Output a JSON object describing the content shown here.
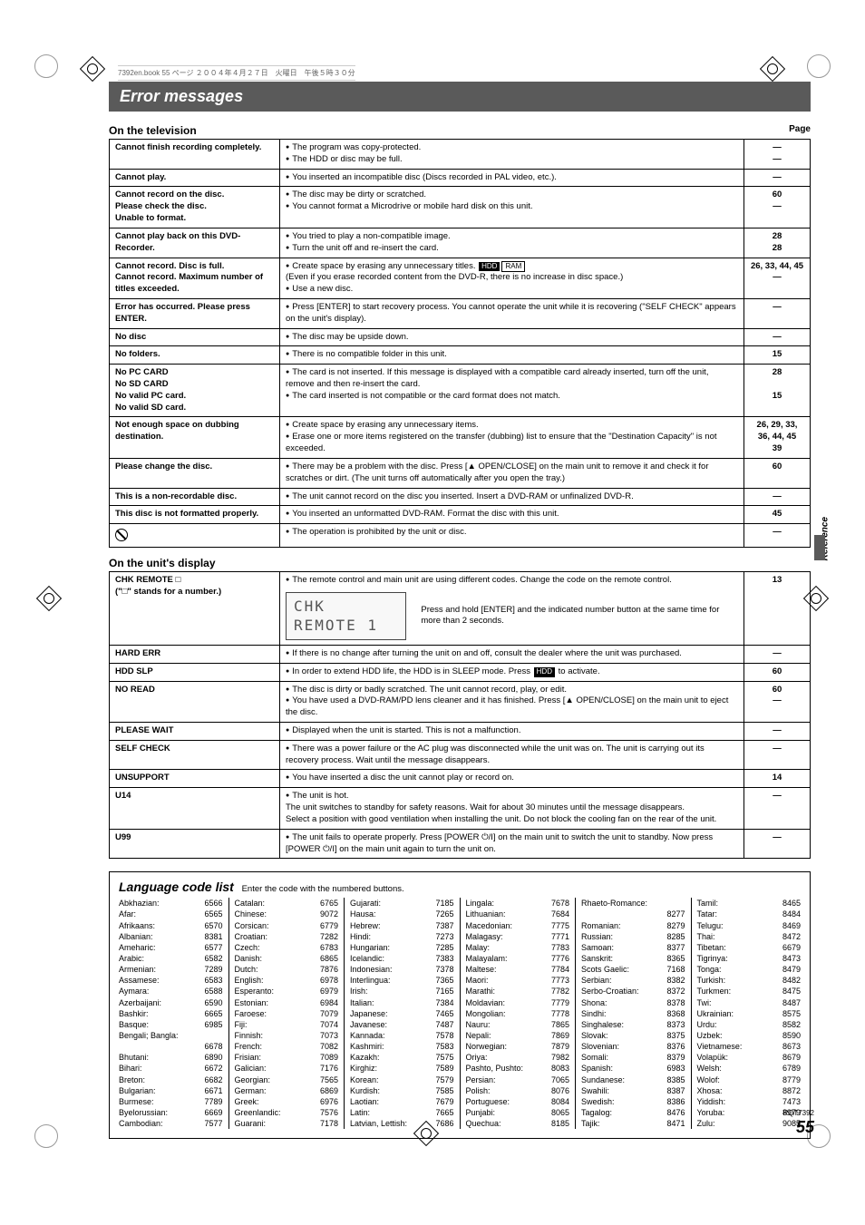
{
  "book_info": "7392en.book  55 ページ  ２００４年４月２７日　火曜日　午後５時３０分",
  "section_title": "Error messages",
  "page_label": "Page",
  "headers": {
    "tv": "On the television",
    "unit": "On the unit's display"
  },
  "tv_table": [
    {
      "c1": "Cannot finish recording completely.",
      "c2": [
        "The program was copy-protected.",
        "The HDD or disc may be full."
      ],
      "c3": "—\n—"
    },
    {
      "c1": "Cannot play.",
      "c2": [
        "You inserted an incompatible disc (Discs recorded in PAL video, etc.)."
      ],
      "c3": "—"
    },
    {
      "c1": "Cannot record on the disc.\nPlease check the disc.\nUnable to format.",
      "c2": [
        "The disc may be dirty or scratched.",
        "You cannot format a Microdrive or mobile hard disk on this unit."
      ],
      "c3": "60\n—"
    },
    {
      "c1": "Cannot play back on this DVD-Recorder.",
      "c2": [
        "You tried to play a non-compatible image.",
        "Turn the unit off and re-insert the card."
      ],
      "c3": "28\n28"
    },
    {
      "c1": "Cannot record. Disc is full.\nCannot record. Maximum number of titles exceeded.",
      "c2": [
        "Create space by erasing any unnecessary titles. [HDD][RAM]\n(Even if you erase recorded content from the DVD-R, there is no increase in disc space.)",
        "Use a new disc."
      ],
      "c3": "26, 33, 44, 45\n—"
    },
    {
      "c1": "Error has occurred. Please press ENTER.",
      "c2": [
        "Press [ENTER] to start recovery process. You cannot operate the unit while it is recovering (\"SELF CHECK\" appears on the unit's display)."
      ],
      "c3": "—"
    },
    {
      "c1": "No disc",
      "c2": [
        "The disc may be upside down."
      ],
      "c3": "—"
    },
    {
      "c1": "No folders.",
      "c2": [
        "There is no compatible folder in this unit."
      ],
      "c3": "15"
    },
    {
      "c1": "No PC CARD\nNo SD CARD\nNo valid PC card.\nNo valid SD card.",
      "c2": [
        "The card is not inserted. If this message is displayed with a compatible card already inserted, turn off the unit, remove and then re-insert the card.",
        "The card inserted is not compatible or the card format does not match."
      ],
      "c3": "28\n\n15"
    },
    {
      "c1": "Not enough space on dubbing destination.",
      "c2": [
        "Create space by erasing any unnecessary items.",
        "Erase one or more items registered on the transfer (dubbing) list to ensure that the \"Destination Capacity\" is not exceeded."
      ],
      "c3": "26, 29, 33, 36, 44, 45\n39"
    },
    {
      "c1": "Please change the disc.",
      "c2": [
        "There may be a problem with the disc. Press [▲ OPEN/CLOSE] on the main unit to remove it and check it for scratches or dirt. (The unit turns off automatically after you open the tray.)"
      ],
      "c3": "60"
    },
    {
      "c1": "This is a non-recordable disc.",
      "c2": [
        "The unit cannot record on the disc you inserted. Insert a DVD-RAM or unfinalized DVD-R."
      ],
      "c3": "—"
    },
    {
      "c1": "This disc is not formatted properly.",
      "c2": [
        "You inserted an unformatted DVD-RAM. Format the disc with this unit."
      ],
      "c3": "45"
    },
    {
      "c1": "[PROHIBIT]",
      "c2": [
        "The operation is prohibited by the unit or disc."
      ],
      "c3": "—"
    }
  ],
  "unit_table": [
    {
      "c1": "CHK REMOTE □\n(\"□\" stands for a number.)",
      "c2": [
        "The remote control and main unit are using different codes. Change the code on the remote control.",
        "[REMOTE_DISPLAY] Press and hold [ENTER] and the indicated number button at the same time for more than 2 seconds."
      ],
      "c3": "13"
    },
    {
      "c1": "HARD ERR",
      "c2": [
        "If there is no change after turning the unit on and off, consult the dealer where the unit was purchased."
      ],
      "c3": "—"
    },
    {
      "c1": "HDD SLP",
      "c2": [
        "In order to extend HDD life, the HDD is in SLEEP mode. Press [HDD] to activate."
      ],
      "c3": "60"
    },
    {
      "c1": "NO READ",
      "c2": [
        "The disc is dirty or badly scratched. The unit cannot record, play, or edit.",
        "You have used a DVD-RAM/PD lens cleaner and it has finished. Press [▲ OPEN/CLOSE] on the main unit to eject the disc."
      ],
      "c3": "60\n—"
    },
    {
      "c1": "PLEASE WAIT",
      "c2": [
        "Displayed when the unit is started. This is not a malfunction."
      ],
      "c3": "—"
    },
    {
      "c1": "SELF CHECK",
      "c2": [
        "There was a power failure or the AC plug was disconnected while the unit was on. The unit is carrying out its recovery process. Wait until the message disappears."
      ],
      "c3": "—"
    },
    {
      "c1": "UNSUPPORT",
      "c2": [
        "You have inserted a disc the unit cannot play or record on."
      ],
      "c3": "14"
    },
    {
      "c1": "U14",
      "c2": [
        "The unit is hot.\nThe unit switches to standby for safety reasons. Wait for about 30 minutes until the message disappears.\nSelect a position with good ventilation when installing the unit. Do not block the cooling fan on the rear of the unit."
      ],
      "c3": "—"
    },
    {
      "c1": "U99",
      "c2": [
        "The unit fails to operate properly. Press [POWER ⏻/I] on the main unit to switch the unit to standby. Now press [POWER ⏻/I] on the main unit again to turn the unit on."
      ],
      "c3": "—"
    }
  ],
  "remote_display_text": "CHK REMOTE 1",
  "lang_title": "Language code list",
  "lang_sub": "Enter the code with the numbered buttons.",
  "languages": [
    [
      [
        "Abkhazian:",
        "6566"
      ],
      [
        "Afar:",
        "6565"
      ],
      [
        "Afrikaans:",
        "6570"
      ],
      [
        "Albanian:",
        "8381"
      ],
      [
        "Ameharic:",
        "6577"
      ],
      [
        "Arabic:",
        "6582"
      ],
      [
        "Armenian:",
        "7289"
      ],
      [
        "Assamese:",
        "6583"
      ],
      [
        "Aymara:",
        "6588"
      ],
      [
        "Azerbaijani:",
        "6590"
      ],
      [
        "Bashkir:",
        "6665"
      ],
      [
        "Basque:",
        "6985"
      ],
      [
        "Bengali; Bangla:",
        ""
      ],
      [
        "",
        "6678"
      ],
      [
        "Bhutani:",
        "6890"
      ],
      [
        "Bihari:",
        "6672"
      ],
      [
        "Breton:",
        "6682"
      ],
      [
        "Bulgarian:",
        "6671"
      ],
      [
        "Burmese:",
        "7789"
      ],
      [
        "Byelorussian:",
        "6669"
      ],
      [
        "Cambodian:",
        "7577"
      ]
    ],
    [
      [
        "Catalan:",
        "6765"
      ],
      [
        "Chinese:",
        "9072"
      ],
      [
        "Corsican:",
        "6779"
      ],
      [
        "Croatian:",
        "7282"
      ],
      [
        "Czech:",
        "6783"
      ],
      [
        "Danish:",
        "6865"
      ],
      [
        "Dutch:",
        "7876"
      ],
      [
        "English:",
        "6978"
      ],
      [
        "Esperanto:",
        "6979"
      ],
      [
        "Estonian:",
        "6984"
      ],
      [
        "Faroese:",
        "7079"
      ],
      [
        "Fiji:",
        "7074"
      ],
      [
        "Finnish:",
        "7073"
      ],
      [
        "French:",
        "7082"
      ],
      [
        "Frisian:",
        "7089"
      ],
      [
        "Galician:",
        "7176"
      ],
      [
        "Georgian:",
        "7565"
      ],
      [
        "German:",
        "6869"
      ],
      [
        "Greek:",
        "6976"
      ],
      [
        "Greenlandic:",
        "7576"
      ],
      [
        "Guarani:",
        "7178"
      ]
    ],
    [
      [
        "Gujarati:",
        "7185"
      ],
      [
        "Hausa:",
        "7265"
      ],
      [
        "Hebrew:",
        "7387"
      ],
      [
        "Hindi:",
        "7273"
      ],
      [
        "Hungarian:",
        "7285"
      ],
      [
        "Icelandic:",
        "7383"
      ],
      [
        "Indonesian:",
        "7378"
      ],
      [
        "Interlingua:",
        "7365"
      ],
      [
        "Irish:",
        "7165"
      ],
      [
        "Italian:",
        "7384"
      ],
      [
        "Japanese:",
        "7465"
      ],
      [
        "Javanese:",
        "7487"
      ],
      [
        "Kannada:",
        "7578"
      ],
      [
        "Kashmiri:",
        "7583"
      ],
      [
        "Kazakh:",
        "7575"
      ],
      [
        "Kirghiz:",
        "7589"
      ],
      [
        "Korean:",
        "7579"
      ],
      [
        "Kurdish:",
        "7585"
      ],
      [
        "Laotian:",
        "7679"
      ],
      [
        "Latin:",
        "7665"
      ],
      [
        "Latvian, Lettish:",
        "7686"
      ]
    ],
    [
      [
        "Lingala:",
        "7678"
      ],
      [
        "Lithuanian:",
        "7684"
      ],
      [
        "Macedonian:",
        "7775"
      ],
      [
        "Malagasy:",
        "7771"
      ],
      [
        "Malay:",
        "7783"
      ],
      [
        "Malayalam:",
        "7776"
      ],
      [
        "Maltese:",
        "7784"
      ],
      [
        "Maori:",
        "7773"
      ],
      [
        "Marathi:",
        "7782"
      ],
      [
        "Moldavian:",
        "7779"
      ],
      [
        "Mongolian:",
        "7778"
      ],
      [
        "Nauru:",
        "7865"
      ],
      [
        "Nepali:",
        "7869"
      ],
      [
        "Norwegian:",
        "7879"
      ],
      [
        "Oriya:",
        "7982"
      ],
      [
        "Pashto, Pushto:",
        "8083"
      ],
      [
        "Persian:",
        "7065"
      ],
      [
        "Polish:",
        "8076"
      ],
      [
        "Portuguese:",
        "8084"
      ],
      [
        "Punjabi:",
        "8065"
      ],
      [
        "Quechua:",
        "8185"
      ]
    ],
    [
      [
        "Rhaeto-Romance:",
        ""
      ],
      [
        "",
        "8277"
      ],
      [
        "Romanian:",
        "8279"
      ],
      [
        "Russian:",
        "8285"
      ],
      [
        "Samoan:",
        "8377"
      ],
      [
        "Sanskrit:",
        "8365"
      ],
      [
        "Scots Gaelic:",
        "7168"
      ],
      [
        "Serbian:",
        "8382"
      ],
      [
        "Serbo-Croatian:",
        "8372"
      ],
      [
        "Shona:",
        "8378"
      ],
      [
        "Sindhi:",
        "8368"
      ],
      [
        "Singhalese:",
        "8373"
      ],
      [
        "Slovak:",
        "8375"
      ],
      [
        "Slovenian:",
        "8376"
      ],
      [
        "Somali:",
        "8379"
      ],
      [
        "Spanish:",
        "6983"
      ],
      [
        "Sundanese:",
        "8385"
      ],
      [
        "Swahili:",
        "8387"
      ],
      [
        "Swedish:",
        "8386"
      ],
      [
        "Tagalog:",
        "8476"
      ],
      [
        "Tajik:",
        "8471"
      ]
    ],
    [
      [
        "Tamil:",
        "8465"
      ],
      [
        "Tatar:",
        "8484"
      ],
      [
        "Telugu:",
        "8469"
      ],
      [
        "Thai:",
        "8472"
      ],
      [
        "Tibetan:",
        "6679"
      ],
      [
        "Tigrinya:",
        "8473"
      ],
      [
        "Tonga:",
        "8479"
      ],
      [
        "Turkish:",
        "8482"
      ],
      [
        "Turkmen:",
        "8475"
      ],
      [
        "Twi:",
        "8487"
      ],
      [
        "Ukrainian:",
        "8575"
      ],
      [
        "Urdu:",
        "8582"
      ],
      [
        "Uzbek:",
        "8590"
      ],
      [
        "Vietnamese:",
        "8673"
      ],
      [
        "Volapük:",
        "8679"
      ],
      [
        "Welsh:",
        "6789"
      ],
      [
        "Wolof:",
        "8779"
      ],
      [
        "Xhosa:",
        "8872"
      ],
      [
        "Yiddish:",
        "7473"
      ],
      [
        "Yoruba:",
        "8979"
      ],
      [
        "Zulu:",
        "9085"
      ]
    ]
  ],
  "reference_tab": "Reference",
  "rqt": "RQT7392",
  "page_num": "55"
}
